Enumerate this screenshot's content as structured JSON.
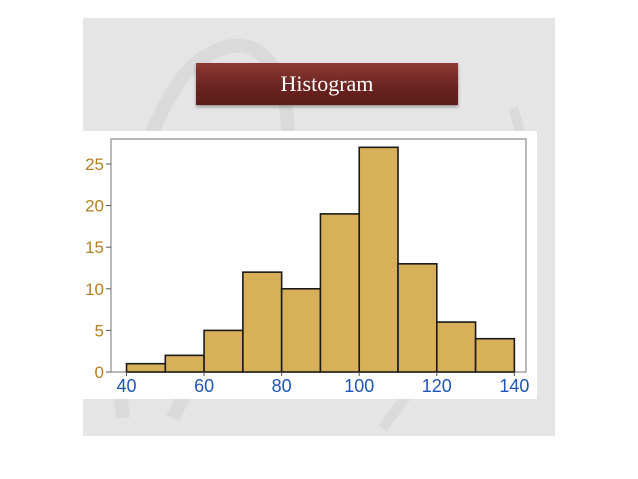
{
  "slide": {
    "title": "Histogram"
  },
  "colors": {
    "panel": "#e5e5e5",
    "banner": "#6b2420",
    "bar_fill": "#d9b05a",
    "bar_stroke": "#1a1a1a",
    "ytick_color": "#b08026",
    "xtick_color": "#1f55b8"
  },
  "chart_data": {
    "type": "bar",
    "title": "",
    "xlabel": "",
    "ylabel": "",
    "bin_edges": [
      40,
      50,
      60,
      70,
      80,
      90,
      100,
      110,
      120,
      130,
      140
    ],
    "values": [
      1,
      2,
      5,
      12,
      10,
      19,
      27,
      13,
      6,
      4
    ],
    "xlim": [
      36,
      143
    ],
    "ylim": [
      0,
      28
    ],
    "xticks": [
      40,
      60,
      80,
      100,
      120,
      140
    ],
    "yticks": [
      0,
      5,
      10,
      15,
      20,
      25
    ],
    "grid": false,
    "legend": "none"
  }
}
